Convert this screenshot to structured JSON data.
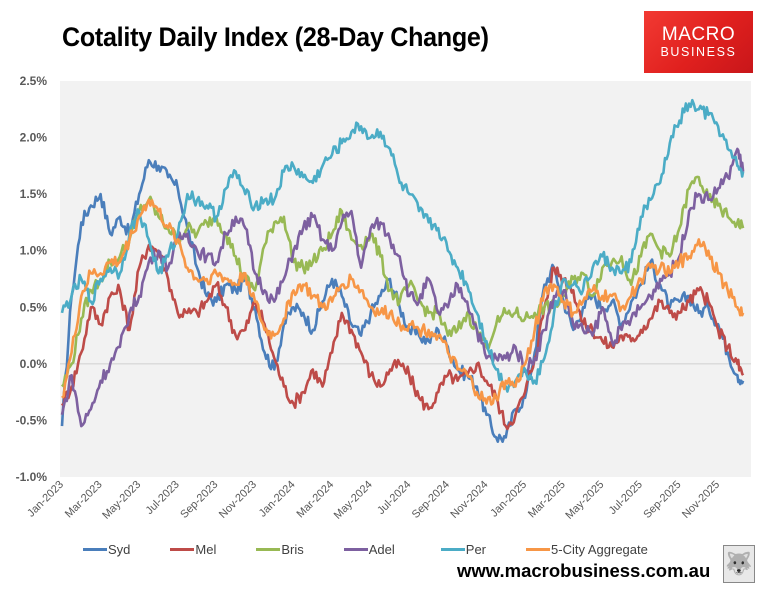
{
  "header": {
    "title": "Cotality Daily Index (28-Day Change)",
    "logo_line1": "MACRO",
    "logo_line2": "BUSINESS"
  },
  "footer": {
    "url": "www.macrobusiness.com.au",
    "mascot_icon": "wolf-mascot-icon"
  },
  "chart_data": {
    "type": "line",
    "title": "Cotality Daily Index (28-Day Change)",
    "xlabel": "",
    "ylabel": "",
    "ylim": [
      -1.0,
      2.5
    ],
    "y_unit": "%",
    "yticks": [
      "2.5%",
      "2.0%",
      "1.5%",
      "1.0%",
      "0.5%",
      "0.0%",
      "-0.5%",
      "-1.0%"
    ],
    "ytick_values": [
      2.5,
      2.0,
      1.5,
      1.0,
      0.5,
      0.0,
      -0.5,
      -1.0
    ],
    "xticks": [
      "Jan-2023",
      "Mar-2023",
      "May-2023",
      "Jul-2023",
      "Sep-2023",
      "Nov-2023",
      "Jan-2024",
      "Mar-2024",
      "May-2024",
      "Jul-2024",
      "Sep-2024",
      "Nov-2024",
      "Jan-2025",
      "Mar-2025",
      "May-2025",
      "Jul-2025",
      "Sep-2025",
      "Nov-2025"
    ],
    "xtick_months": [
      0,
      2,
      4,
      6,
      8,
      10,
      12,
      14,
      16,
      18,
      20,
      22,
      24,
      26,
      28,
      30,
      32,
      34
    ],
    "x_range_months": [
      0,
      35.5
    ],
    "x_note": "x values are months since Jan-2023 (0 = Jan-2023)",
    "grid": "zero-line only",
    "legend_position": "bottom",
    "x": [
      0,
      0.5,
      1,
      1.5,
      2,
      2.5,
      3,
      3.5,
      4,
      4.5,
      5,
      5.5,
      6,
      6.5,
      7,
      7.5,
      8,
      8.5,
      9,
      9.5,
      10,
      10.5,
      11,
      11.5,
      12,
      12.5,
      13,
      13.5,
      14,
      14.5,
      15,
      15.5,
      16,
      16.5,
      17,
      17.5,
      18,
      18.5,
      19,
      19.5,
      20,
      20.5,
      21,
      21.5,
      22,
      22.5,
      23,
      23.5,
      24,
      24.5,
      25,
      25.5,
      26,
      26.5,
      27,
      27.5,
      28,
      28.5,
      29,
      29.5,
      30,
      30.5,
      31,
      31.5,
      32,
      32.5,
      33,
      33.5,
      34,
      34.5,
      35,
      35.3
    ],
    "series": [
      {
        "name": "Syd",
        "color": "#4a7ebb",
        "values": [
          -0.55,
          0.6,
          1.25,
          1.4,
          1.5,
          1.15,
          1.3,
          1.15,
          1.5,
          1.8,
          1.75,
          1.65,
          1.55,
          1.2,
          0.85,
          0.6,
          0.55,
          0.7,
          0.65,
          0.75,
          0.5,
          0.1,
          -0.05,
          0.35,
          0.5,
          0.45,
          0.3,
          0.55,
          0.75,
          0.6,
          0.35,
          0.25,
          0.45,
          0.6,
          0.75,
          0.5,
          0.3,
          0.25,
          0.2,
          0.3,
          0.15,
          -0.05,
          -0.1,
          -0.2,
          -0.45,
          -0.65,
          -0.65,
          -0.4,
          -0.3,
          0.1,
          0.7,
          0.85,
          0.55,
          0.3,
          0.5,
          0.6,
          0.5,
          0.55,
          0.35,
          0.55,
          0.7,
          0.9,
          0.7,
          0.5,
          0.55,
          0.6,
          0.45,
          0.5,
          0.35,
          0.1,
          -0.1,
          -0.15
        ]
      },
      {
        "name": "Mel",
        "color": "#be4b48",
        "values": [
          -0.35,
          -0.2,
          0.1,
          0.5,
          0.35,
          0.6,
          0.65,
          0.3,
          0.85,
          1.05,
          1.0,
          0.75,
          0.45,
          0.45,
          0.45,
          0.55,
          0.7,
          0.5,
          0.25,
          0.3,
          0.55,
          0.35,
          0.05,
          -0.2,
          -0.35,
          -0.25,
          -0.05,
          -0.2,
          0.1,
          0.45,
          0.3,
          0.1,
          -0.1,
          -0.2,
          -0.05,
          0.0,
          -0.1,
          -0.3,
          -0.4,
          -0.25,
          -0.1,
          -0.15,
          -0.1,
          0.0,
          -0.15,
          -0.3,
          -0.55,
          -0.45,
          -0.25,
          0.05,
          0.5,
          0.85,
          0.75,
          0.65,
          0.35,
          0.3,
          0.2,
          0.15,
          0.25,
          0.2,
          0.3,
          0.4,
          0.55,
          0.45,
          0.45,
          0.55,
          0.65,
          0.55,
          0.3,
          0.15,
          0.0,
          -0.1
        ]
      },
      {
        "name": "Bris",
        "color": "#98b954",
        "values": [
          -0.2,
          0.0,
          0.4,
          0.65,
          0.75,
          0.9,
          0.95,
          1.1,
          1.35,
          1.45,
          1.3,
          1.2,
          1.1,
          1.2,
          1.15,
          1.25,
          1.3,
          1.15,
          0.95,
          0.75,
          0.65,
          1.05,
          1.25,
          1.3,
          0.9,
          0.85,
          0.9,
          1.0,
          1.15,
          1.35,
          1.1,
          1.05,
          1.15,
          0.95,
          0.65,
          0.55,
          0.7,
          0.55,
          0.45,
          0.45,
          0.25,
          0.3,
          0.45,
          0.3,
          0.15,
          0.35,
          0.45,
          0.45,
          0.4,
          0.45,
          0.5,
          0.5,
          0.6,
          0.75,
          0.8,
          0.6,
          0.85,
          0.9,
          0.95,
          0.7,
          0.95,
          1.15,
          1.0,
          0.95,
          1.2,
          1.55,
          1.65,
          1.45,
          1.4,
          1.3,
          1.25,
          1.2
        ]
      },
      {
        "name": "Adel",
        "color": "#7d60a0",
        "values": [
          -0.45,
          -0.1,
          -0.55,
          -0.4,
          -0.15,
          0.0,
          0.15,
          0.45,
          0.6,
          0.9,
          1.0,
          0.85,
          1.1,
          1.15,
          1.0,
          0.95,
          0.9,
          1.15,
          1.3,
          1.2,
          0.8,
          0.65,
          0.55,
          0.75,
          1.0,
          1.2,
          1.3,
          1.1,
          1.0,
          1.25,
          1.35,
          0.85,
          1.2,
          1.25,
          1.1,
          0.95,
          0.6,
          0.55,
          0.75,
          0.45,
          0.5,
          0.7,
          0.55,
          0.3,
          0.05,
          0.05,
          0.05,
          0.15,
          -0.05,
          0.05,
          0.3,
          0.6,
          0.65,
          0.35,
          0.3,
          0.25,
          0.5,
          0.2,
          0.3,
          0.4,
          0.5,
          0.6,
          0.75,
          0.8,
          0.95,
          1.35,
          1.5,
          1.45,
          1.55,
          1.65,
          1.9,
          1.7
        ]
      },
      {
        "name": "Per",
        "color": "#4bacc6",
        "values": [
          0.45,
          0.6,
          0.75,
          0.55,
          0.75,
          0.85,
          0.8,
          1.15,
          1.35,
          1.1,
          0.8,
          0.95,
          1.15,
          1.5,
          1.45,
          1.4,
          1.3,
          1.55,
          1.7,
          1.5,
          1.4,
          1.45,
          1.45,
          1.7,
          1.75,
          1.65,
          1.6,
          1.75,
          1.85,
          1.95,
          2.05,
          2.1,
          2.0,
          2.05,
          1.9,
          1.6,
          1.5,
          1.35,
          1.25,
          1.2,
          1.0,
          0.85,
          0.7,
          0.45,
          0.2,
          -0.05,
          -0.2,
          -0.15,
          -0.05,
          -0.15,
          0.05,
          0.45,
          0.75,
          0.7,
          0.65,
          0.85,
          0.95,
          0.85,
          0.8,
          0.9,
          1.3,
          1.45,
          1.6,
          1.95,
          2.15,
          2.3,
          2.25,
          2.2,
          2.1,
          1.9,
          1.75,
          1.7
        ]
      },
      {
        "name": "5-City Aggregate",
        "color": "#f79646",
        "values": [
          -0.3,
          0.1,
          0.6,
          0.8,
          0.8,
          0.9,
          0.9,
          1.1,
          1.3,
          1.45,
          1.35,
          1.2,
          1.1,
          0.85,
          0.75,
          0.75,
          0.8,
          0.75,
          0.7,
          0.8,
          0.55,
          0.3,
          0.25,
          0.4,
          0.65,
          0.7,
          0.6,
          0.5,
          0.55,
          0.7,
          0.75,
          0.65,
          0.5,
          0.45,
          0.45,
          0.35,
          0.35,
          0.3,
          0.3,
          0.25,
          0.1,
          -0.05,
          -0.1,
          -0.25,
          -0.35,
          -0.3,
          -0.15,
          -0.2,
          0.0,
          0.3,
          0.65,
          0.7,
          0.55,
          0.45,
          0.55,
          0.65,
          0.6,
          0.6,
          0.5,
          0.6,
          0.75,
          0.85,
          0.85,
          0.8,
          0.9,
          0.95,
          1.1,
          1.0,
          0.8,
          0.65,
          0.5,
          0.45
        ]
      }
    ]
  }
}
